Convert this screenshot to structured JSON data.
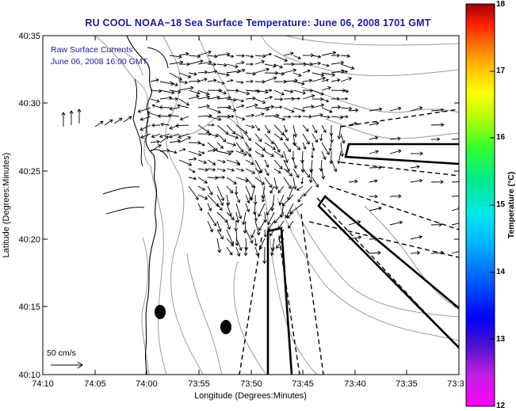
{
  "title": "RU COOL  NOAA−18  Sea Surface Temperature:  June 06, 2008 1701 GMT",
  "annotation": {
    "line1": "Raw Surface Currents",
    "line2": "June 06, 2008 16:00 GMT",
    "scale_label": "50 cm/s"
  },
  "axes": {
    "xlabel": "Longitude (Degrees:Minutes)",
    "ylabel": "Latitude (Degrees:Minutes)",
    "xticks": [
      "74:10",
      "74:05",
      "74:00",
      "73:55",
      "73:50",
      "73:45",
      "73:40",
      "73:35",
      "73:3"
    ],
    "yticks": [
      "40:35",
      "40:30",
      "40:25",
      "40:20",
      "40:15",
      "40:10"
    ]
  },
  "colorbar": {
    "label": "Temperature (°C)",
    "ticks": [
      "18",
      "17",
      "16",
      "15",
      "14",
      "13",
      "12"
    ],
    "min": 12,
    "max": 18
  },
  "colors": {
    "title": "#1a1aa0",
    "annotation": "#1a1aa0",
    "contour": "#8c8c8c",
    "vector": "#000000"
  }
}
